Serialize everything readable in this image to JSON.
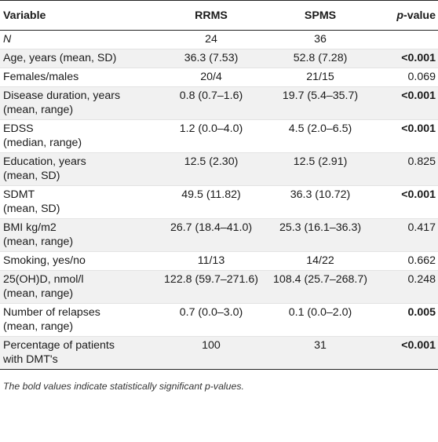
{
  "table": {
    "headers": {
      "variable": "Variable",
      "rrms": "RRMS",
      "spms": "SPMS",
      "pvalue_italic": "p",
      "pvalue_rest": "-value"
    },
    "rows": [
      {
        "var1": "N",
        "var2": "",
        "rrms": "24",
        "spms": "36",
        "p": "",
        "bold": false,
        "italic_var": true
      },
      {
        "var1": "Age, years (mean, SD)",
        "var2": "",
        "rrms": "36.3 (7.53)",
        "spms": "52.8 (7.28)",
        "p": "<0.001",
        "bold": true
      },
      {
        "var1": "Females/males",
        "var2": "",
        "rrms": "20/4",
        "spms": "21/15",
        "p": "0.069",
        "bold": false
      },
      {
        "var1": "Disease duration, years",
        "var2": "(mean, range)",
        "rrms": "0.8 (0.7–1.6)",
        "spms": "19.7 (5.4–35.7)",
        "p": "<0.001",
        "bold": true
      },
      {
        "var1": "EDSS",
        "var2": "(median, range)",
        "rrms": "1.2 (0.0–4.0)",
        "spms": "4.5 (2.0–6.5)",
        "p": "<0.001",
        "bold": true
      },
      {
        "var1": "Education, years",
        "var2": "(mean, SD)",
        "rrms": "12.5 (2.30)",
        "spms": "12.5 (2.91)",
        "p": "0.825",
        "bold": false
      },
      {
        "var1": "SDMT",
        "var2": "(mean, SD)",
        "rrms": "49.5 (11.82)",
        "spms": "36.3 (10.72)",
        "p": "<0.001",
        "bold": true
      },
      {
        "var1": "BMI kg/m2",
        "var2": "(mean, range)",
        "rrms": "26.7 (18.4–41.0)",
        "spms": "25.3 (16.1–36.3)",
        "p": "0.417",
        "bold": false
      },
      {
        "var1": "Smoking, yes/no",
        "var2": "",
        "rrms": "11/13",
        "spms": "14/22",
        "p": "0.662",
        "bold": false
      },
      {
        "var1": "25(OH)D, nmol/l",
        "var2": "(mean, range)",
        "rrms": "122.8 (59.7–271.6)",
        "spms": "108.4 (25.7–268.7)",
        "p": "0.248",
        "bold": false
      },
      {
        "var1": "Number of relapses",
        "var2": "(mean, range)",
        "rrms": "0.7 (0.0–3.0)",
        "spms": "0.1 (0.0–2.0)",
        "p": "0.005",
        "bold": true
      },
      {
        "var1": "Percentage of patients",
        "var2": "with DMT's",
        "rrms": "100",
        "spms": "31",
        "p": "<0.001",
        "bold": true
      }
    ]
  },
  "footnote": "The bold values indicate statistically significant p-values."
}
